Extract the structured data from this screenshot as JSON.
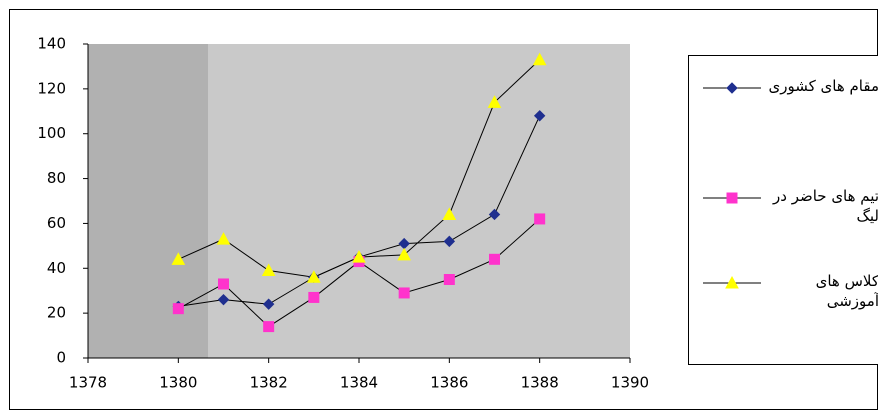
{
  "chart_data": {
    "type": "line",
    "x": [
      1380,
      1381,
      1382,
      1383,
      1384,
      1385,
      1386,
      1387,
      1388
    ],
    "series": [
      {
        "name": "مقام های کشوری",
        "color": "#1f2f8f",
        "marker": "diamond",
        "values": [
          23,
          26,
          24,
          36,
          45,
          51,
          52,
          64,
          108
        ]
      },
      {
        "name": "تیم های حاضر در لیگ",
        "color": "#ff33cc",
        "marker": "square",
        "values": [
          22,
          33,
          14,
          27,
          43,
          29,
          35,
          44,
          62
        ]
      },
      {
        "name": "کلاس های آموزشی",
        "color": "#ffff00",
        "marker": "triangle",
        "values": [
          44,
          53,
          39,
          36,
          45,
          46,
          64,
          114,
          133
        ]
      }
    ],
    "line_color": "#000000",
    "xlim": [
      1378,
      1390
    ],
    "xticks": [
      1378,
      1380,
      1382,
      1384,
      1386,
      1388,
      1390
    ],
    "ylim": [
      0,
      140
    ],
    "yticks": [
      0,
      20,
      40,
      60,
      80,
      100,
      120,
      140
    ],
    "grid": false,
    "legend": "right"
  }
}
